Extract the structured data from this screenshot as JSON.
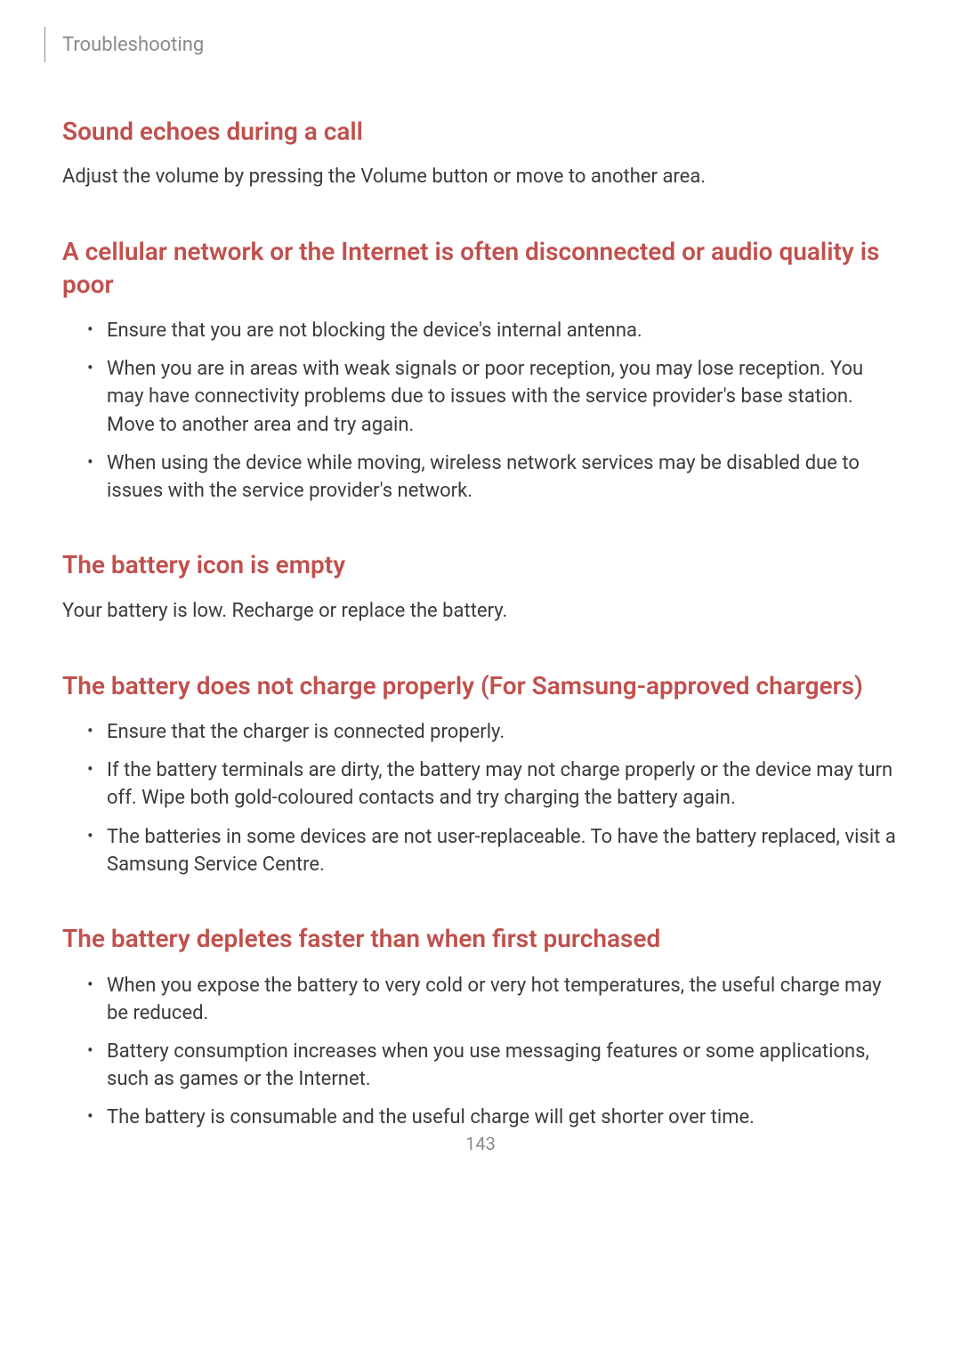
{
  "header": {
    "breadcrumb": "Troubleshooting"
  },
  "sections": [
    {
      "heading": "Sound echoes during a call",
      "body": "Adjust the volume by pressing the Volume button or move to another area."
    },
    {
      "heading": "A cellular network or the Internet is often disconnected or audio quality is poor",
      "bullets": [
        "Ensure that you are not blocking the device's internal antenna.",
        "When you are in areas with weak signals or poor reception, you may lose reception. You may have connectivity problems due to issues with the service provider's base station. Move to another area and try again.",
        "When using the device while moving, wireless network services may be disabled due to issues with the service provider's network."
      ]
    },
    {
      "heading": "The battery icon is empty",
      "body": "Your battery is low. Recharge or replace the battery."
    },
    {
      "heading": "The battery does not charge properly (For Samsung-approved chargers)",
      "bullets": [
        "Ensure that the charger is connected properly.",
        "If the battery terminals are dirty, the battery may not charge properly or the device may turn off. Wipe both gold-coloured contacts and try charging the battery again.",
        "The batteries in some devices are not user-replaceable. To have the battery replaced, visit a Samsung Service Centre."
      ]
    },
    {
      "heading": "The battery depletes faster than when first purchased",
      "bullets": [
        "When you expose the battery to very cold or very hot temperatures, the useful charge may be reduced.",
        "Battery consumption increases when you use messaging features or some applications, such as games or the Internet.",
        "The battery is consumable and the useful charge will get shorter over time."
      ]
    }
  ],
  "pageNumber": "143",
  "colors": {
    "heading": "#c0504d",
    "bodyText": "#3b3b3b",
    "headerText": "#8a8a8a",
    "background": "#ffffff"
  },
  "typography": {
    "heading_fontsize": 28,
    "body_fontsize": 22,
    "header_fontsize": 22,
    "pagenum_fontsize": 20
  }
}
